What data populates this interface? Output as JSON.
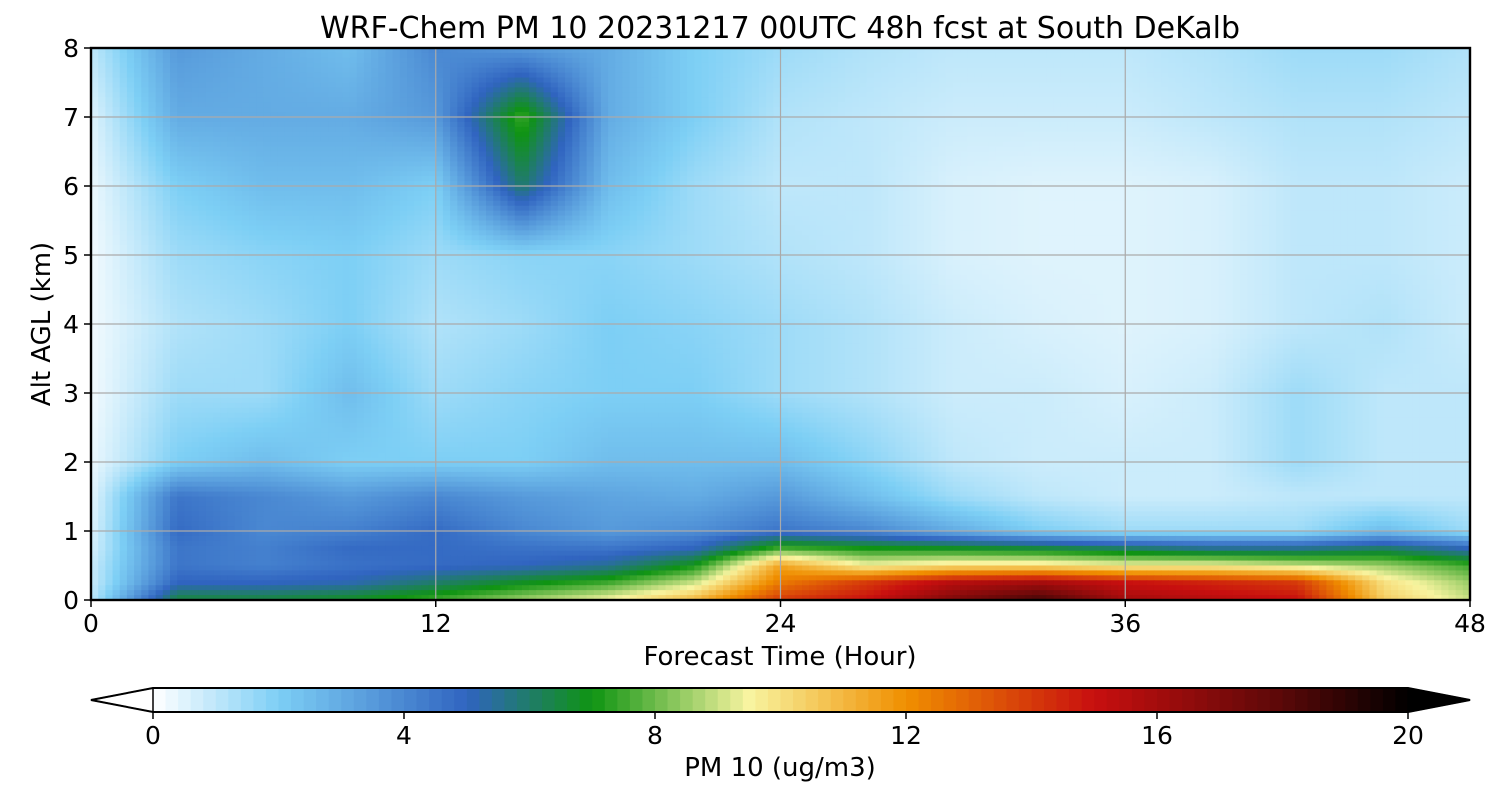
{
  "chart_data": {
    "type": "heatmap",
    "title": "WRF-Chem PM 10  20231217 00UTC 48h fcst at South DeKalb",
    "xlabel": "Forecast Time (Hour)",
    "ylabel": "Alt AGL (km)",
    "xlim": [
      0,
      48
    ],
    "ylim": [
      0,
      8
    ],
    "x_ticks": [
      0,
      12,
      24,
      36,
      48
    ],
    "x_tick_labels": [
      "0",
      "12",
      "24",
      "36",
      "48"
    ],
    "y_ticks": [
      0,
      1,
      2,
      3,
      4,
      5,
      6,
      7,
      8
    ],
    "y_tick_labels": [
      "0",
      "1",
      "2",
      "3",
      "4",
      "5",
      "6",
      "7",
      "8"
    ],
    "grid": true,
    "colorbar": {
      "label": "PM 10  (ug/m3)",
      "orientation": "horizontal",
      "extend": "both",
      "range": [
        0,
        20
      ],
      "ticks": [
        0,
        4,
        8,
        12,
        16,
        20
      ],
      "tick_labels": [
        "0",
        "4",
        "8",
        "12",
        "16",
        "20"
      ],
      "color_stops": [
        {
          "value": 0,
          "color": "#ffffff"
        },
        {
          "value": 2,
          "color": "#7dcff5"
        },
        {
          "value": 5,
          "color": "#3064c0"
        },
        {
          "value": 7,
          "color": "#0f9412"
        },
        {
          "value": 9.5,
          "color": "#f8f4a0"
        },
        {
          "value": 12,
          "color": "#f08f00"
        },
        {
          "value": 15,
          "color": "#c80f0f"
        },
        {
          "value": 18,
          "color": "#5a0808"
        },
        {
          "value": 20,
          "color": "#000000"
        }
      ]
    },
    "z_units": "ug/m3",
    "z_grid": {
      "x": [
        0,
        3,
        6,
        9,
        12,
        15,
        18,
        21,
        24,
        27,
        30,
        33,
        36,
        39,
        42,
        45,
        48
      ],
      "y": [
        0,
        0.25,
        0.5,
        0.75,
        1,
        1.5,
        2,
        3,
        4,
        5,
        6,
        7,
        8
      ],
      "values": [
        [
          1.0,
          6.5,
          6.5,
          6.8,
          7.5,
          8.5,
          9.5,
          11.0,
          14.0,
          15.0,
          17.0,
          18.5,
          16.0,
          15.5,
          15.0,
          10.5,
          9.0
        ],
        [
          0.8,
          5.0,
          5.0,
          5.2,
          6.0,
          6.8,
          7.5,
          9.0,
          12.5,
          14.0,
          15.5,
          16.0,
          15.0,
          14.5,
          14.0,
          10.0,
          8.5
        ],
        [
          0.8,
          4.5,
          4.2,
          4.6,
          4.8,
          5.0,
          5.5,
          7.0,
          11.5,
          9.5,
          10.0,
          10.0,
          9.5,
          9.5,
          9.0,
          8.5,
          7.5
        ],
        [
          0.6,
          4.5,
          4.2,
          4.8,
          4.8,
          4.6,
          4.5,
          5.0,
          7.5,
          7.0,
          6.8,
          6.5,
          6.0,
          5.5,
          5.5,
          6.0,
          5.0
        ],
        [
          0.5,
          4.8,
          4.0,
          4.2,
          4.8,
          4.0,
          3.5,
          3.8,
          4.5,
          4.0,
          3.0,
          2.0,
          1.5,
          1.5,
          1.5,
          2.5,
          1.5
        ],
        [
          0.4,
          4.5,
          4.0,
          3.5,
          4.0,
          3.5,
          3.2,
          3.0,
          3.5,
          2.5,
          1.5,
          1.0,
          0.8,
          0.8,
          1.0,
          1.0,
          1.0
        ],
        [
          0.3,
          2.0,
          2.5,
          2.0,
          2.0,
          2.0,
          2.5,
          2.5,
          2.5,
          1.8,
          1.0,
          0.8,
          0.8,
          0.8,
          1.5,
          1.0,
          1.0
        ],
        [
          0.2,
          1.5,
          1.5,
          2.5,
          1.5,
          1.8,
          2.0,
          2.0,
          1.5,
          1.2,
          0.8,
          0.8,
          0.6,
          0.8,
          1.5,
          1.0,
          1.0
        ],
        [
          0.2,
          1.2,
          1.5,
          2.0,
          1.2,
          1.5,
          2.0,
          1.8,
          1.5,
          1.2,
          0.8,
          0.6,
          0.5,
          0.6,
          1.0,
          1.2,
          0.8
        ],
        [
          0.2,
          1.5,
          1.8,
          2.0,
          1.5,
          1.8,
          1.8,
          1.5,
          1.2,
          1.0,
          0.6,
          0.5,
          0.5,
          0.6,
          1.0,
          1.0,
          0.8
        ],
        [
          0.3,
          2.0,
          2.5,
          2.5,
          2.0,
          6.0,
          2.5,
          1.5,
          1.0,
          1.0,
          0.6,
          0.5,
          0.5,
          0.6,
          1.0,
          1.0,
          0.8
        ],
        [
          0.5,
          3.0,
          3.0,
          3.0,
          3.5,
          7.5,
          3.0,
          2.0,
          1.2,
          1.0,
          0.8,
          0.8,
          0.8,
          1.0,
          1.2,
          1.2,
          1.0
        ],
        [
          1.0,
          3.5,
          3.0,
          2.5,
          4.0,
          3.5,
          3.0,
          2.0,
          1.5,
          1.2,
          1.0,
          1.0,
          1.0,
          1.2,
          1.5,
          1.5,
          1.2
        ]
      ]
    }
  }
}
